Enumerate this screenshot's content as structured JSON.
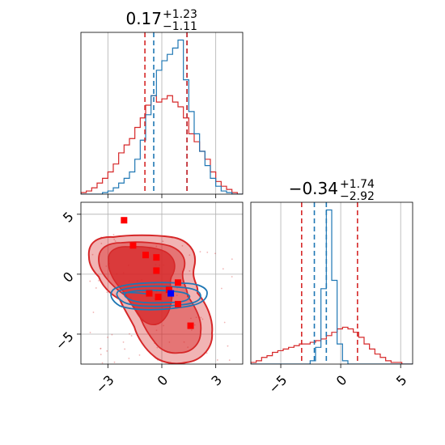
{
  "chart_data": {
    "type": "corner",
    "colors": {
      "red": "#d62728",
      "blue": "#1f77b4",
      "marker_red": "#ff0000",
      "marker_blue": "#0000ff",
      "grid": "#b0b0b0"
    },
    "panels": {
      "hist_top": {
        "type": "histogram",
        "title": {
          "main": "0.17",
          "plus": "+1.23",
          "minus": "−1.11"
        },
        "xlim": [
          -4.5,
          4.5
        ],
        "x_ticks": [
          -3,
          0,
          3
        ],
        "quantiles_red": [
          -0.94,
          1.4
        ],
        "quantiles_blue": [
          -0.45,
          1.4
        ],
        "bin_edges": [
          -4.5,
          -4.2,
          -3.9,
          -3.6,
          -3.3,
          -3.0,
          -2.7,
          -2.4,
          -2.1,
          -1.8,
          -1.5,
          -1.2,
          -0.9,
          -0.6,
          -0.3,
          0.0,
          0.3,
          0.6,
          0.9,
          1.2,
          1.5,
          1.8,
          2.1,
          2.4,
          2.7,
          3.0,
          3.3,
          3.6,
          3.9,
          4.2,
          4.5
        ],
        "series": [
          {
            "name": "red",
            "values": [
              0.01,
              0.02,
              0.04,
              0.07,
              0.1,
              0.14,
              0.19,
              0.26,
              0.31,
              0.35,
              0.42,
              0.48,
              0.56,
              0.62,
              0.58,
              0.6,
              0.62,
              0.58,
              0.55,
              0.48,
              0.38,
              0.33,
              0.27,
              0.22,
              0.14,
              0.08,
              0.05,
              0.03,
              0.01,
              0.0
            ]
          },
          {
            "name": "blue",
            "values": [
              0.0,
              0.0,
              0.0,
              0.0,
              0.01,
              0.02,
              0.04,
              0.07,
              0.1,
              0.14,
              0.22,
              0.34,
              0.5,
              0.62,
              0.78,
              0.84,
              0.88,
              0.92,
              0.97,
              0.72,
              0.52,
              0.38,
              0.27,
              0.18,
              0.1,
              0.05,
              0.02,
              0.01,
              0.0,
              0.0
            ]
          }
        ]
      },
      "hist_right": {
        "type": "histogram",
        "title": {
          "main": "−0.34",
          "plus": "+1.74",
          "minus": "−2.92"
        },
        "xlim": [
          -7.5,
          6
        ],
        "x_ticks": [
          -5,
          0,
          5
        ],
        "quantiles_red": [
          -3.26,
          1.4
        ],
        "quantiles_blue": [
          -2.2,
          -1.2
        ],
        "bin_edges": [
          -7.5,
          -7.05,
          -6.6,
          -6.15,
          -5.7,
          -5.25,
          -4.8,
          -4.35,
          -3.9,
          -3.45,
          -3.0,
          -2.55,
          -2.1,
          -1.65,
          -1.2,
          -0.75,
          -0.3,
          0.15,
          0.6,
          1.05,
          1.5,
          1.95,
          2.4,
          2.85,
          3.3,
          3.75,
          4.2,
          4.65,
          5.1,
          5.55,
          6.0
        ],
        "series": [
          {
            "name": "red",
            "values": [
              0.01,
              0.02,
              0.04,
              0.05,
              0.07,
              0.08,
              0.09,
              0.1,
              0.11,
              0.12,
              0.12,
              0.13,
              0.14,
              0.15,
              0.17,
              0.19,
              0.21,
              0.22,
              0.21,
              0.19,
              0.16,
              0.12,
              0.09,
              0.06,
              0.04,
              0.02,
              0.01,
              0.01,
              0.0,
              0.0
            ]
          },
          {
            "name": "blue",
            "values": [
              0.0,
              0.0,
              0.0,
              0.0,
              0.0,
              0.0,
              0.0,
              0.0,
              0.0,
              0.0,
              0.0,
              0.02,
              0.1,
              0.45,
              0.92,
              0.5,
              0.12,
              0.02,
              0.0,
              0.0,
              0.0,
              0.0,
              0.0,
              0.0,
              0.0,
              0.0,
              0.0,
              0.0,
              0.0,
              0.0
            ]
          }
        ]
      },
      "scatter_2d": {
        "type": "contour",
        "xlim": [
          -4.5,
          4.5
        ],
        "ylim": [
          -7.5,
          6
        ],
        "x_ticks": [
          -3,
          0,
          3
        ],
        "y_ticks": [
          -5,
          0,
          5
        ],
        "red_markers": [
          [
            -2.1,
            4.5
          ],
          [
            -1.6,
            2.4
          ],
          [
            -0.9,
            1.6
          ],
          [
            -0.3,
            1.4
          ],
          [
            -0.3,
            0.3
          ],
          [
            0.9,
            -0.7
          ],
          [
            -0.7,
            -1.6
          ],
          [
            -0.2,
            -1.9
          ],
          [
            0.4,
            -1.3
          ],
          [
            0.9,
            -2.5
          ],
          [
            1.6,
            -4.3
          ]
        ],
        "blue_marker": [
          0.5,
          -1.6
        ]
      }
    }
  }
}
